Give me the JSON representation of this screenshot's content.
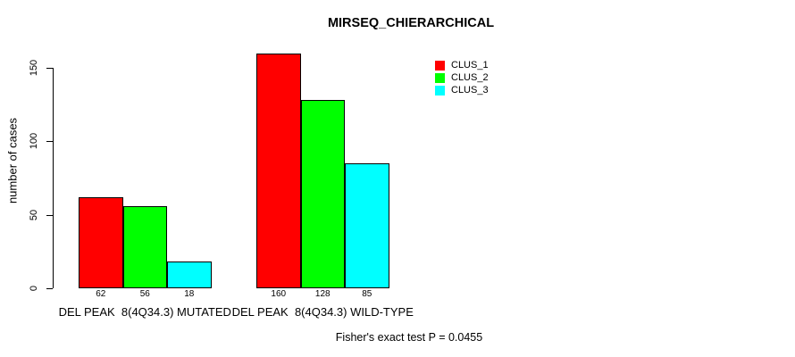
{
  "chart_data": {
    "type": "bar",
    "title": "MIRSEQ_CHIERARCHICAL",
    "xlabel": "",
    "ylabel": "number of cases",
    "ylim": [
      0,
      160
    ],
    "yticks": [
      0,
      50,
      100,
      150
    ],
    "grid": false,
    "legend_position": "top-right-inside",
    "categories": [
      "DEL PEAK  8(4Q34.3) MUTATED",
      "DEL PEAK  8(4Q34.3) WILD-TYPE"
    ],
    "series": [
      {
        "name": "CLUS_1",
        "color": "#FF0000",
        "values": [
          62,
          160
        ]
      },
      {
        "name": "CLUS_2",
        "color": "#00FF00",
        "values": [
          56,
          128
        ]
      },
      {
        "name": "CLUS_3",
        "color": "#00FFFF",
        "values": [
          18,
          85
        ]
      }
    ],
    "bar_value_labels": [
      [
        "62",
        "56",
        "18"
      ],
      [
        "160",
        "128",
        "85"
      ]
    ],
    "annotation": "Fisher's exact test P = 0.0455"
  },
  "colors": {
    "background": "#FFFFFF",
    "bar_border": "#000000",
    "axis": "#000000",
    "text": "#000000"
  }
}
